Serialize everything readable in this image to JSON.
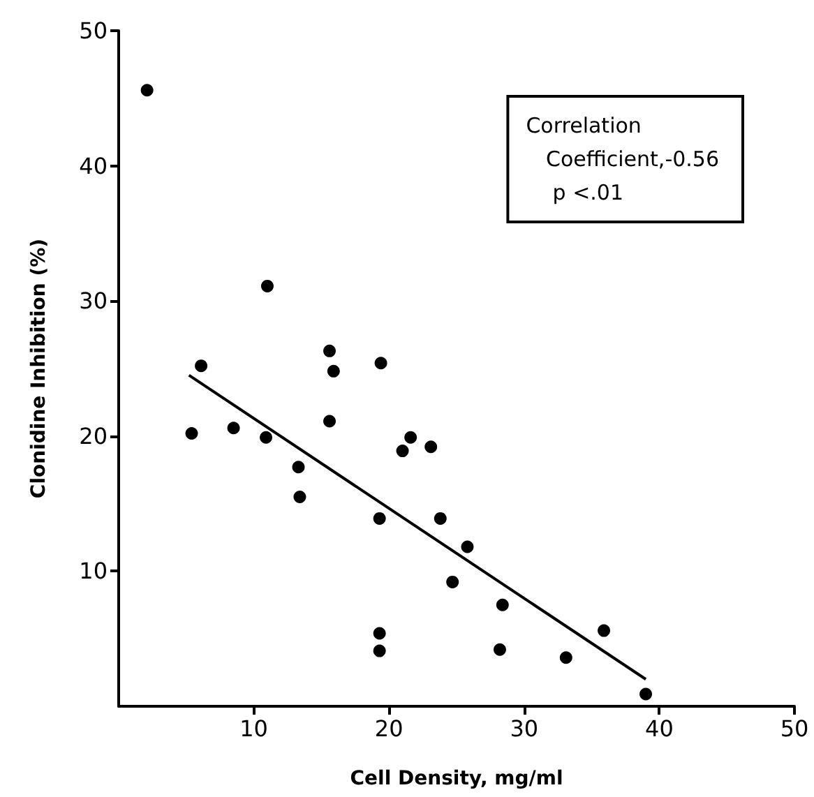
{
  "chart_data": {
    "type": "scatter",
    "xlabel": "Cell Density, mg/ml",
    "ylabel": "Clonidine Inhibition (%)",
    "annotations": [
      "Correlation\n   Coefficient,-0.56\n    p <.01"
    ],
    "xlim": [
      0,
      50
    ],
    "xticks": [
      10,
      20,
      30,
      40,
      50
    ],
    "ylim": [
      0,
      50
    ],
    "yticks": [
      10,
      20,
      30,
      40,
      50
    ],
    "grid": false,
    "marker": "circle",
    "series": [
      {
        "color": "#000000",
        "x": [
          2.1,
          6.1,
          5.4,
          8.5,
          10.9,
          11.0,
          15.6,
          15.9,
          19.4,
          15.6,
          13.3,
          13.4,
          21.0,
          21.6,
          23.1,
          19.3,
          23.8,
          25.8,
          24.7,
          28.4,
          19.3,
          19.3,
          28.2,
          33.1,
          35.9,
          39.0
        ],
        "values": [
          45.6,
          25.2,
          20.2,
          20.6,
          19.9,
          31.1,
          26.3,
          24.8,
          25.4,
          21.1,
          17.7,
          15.5,
          18.9,
          19.9,
          19.2,
          13.9,
          13.9,
          11.8,
          9.2,
          7.5,
          5.4,
          4.1,
          4.2,
          3.6,
          5.6,
          0.9
        ]
      },
      {
        "type": "line",
        "color": "#000000",
        "marker": "none",
        "x": [
          5.2,
          39.0
        ],
        "values": [
          24.5,
          2.0
        ]
      }
    ]
  }
}
